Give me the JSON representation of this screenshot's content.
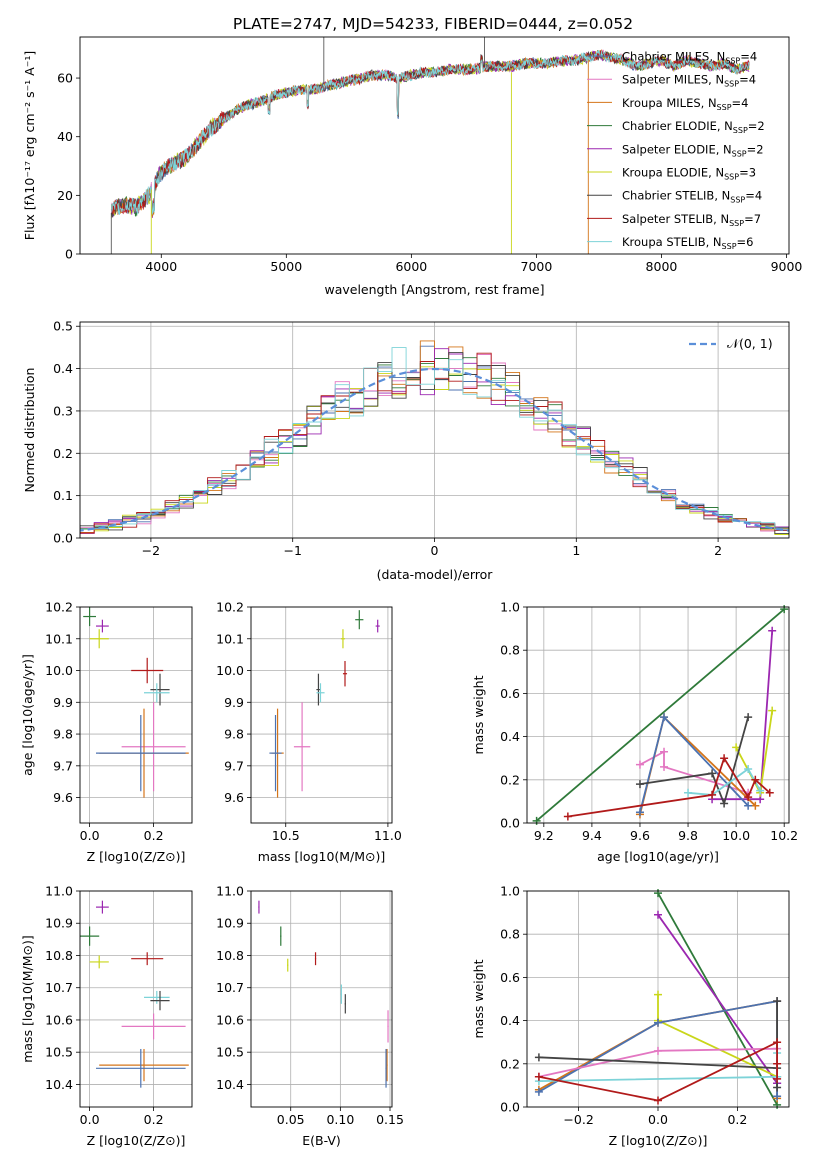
{
  "chart_data": [
    {
      "type": "line",
      "title": "PLATE=2747, MJD=54233, FIBERID=0444, z=0.052",
      "xlabel": "wavelength [Angstrom, rest frame]",
      "ylabel": "Flux [fλ10⁻¹⁷ erg cm⁻² s⁻¹ A⁻¹]",
      "xlim": [
        3350,
        9020
      ],
      "ylim": [
        0,
        74
      ],
      "xticks": [
        4000,
        5000,
        6000,
        7000,
        8000,
        9000
      ],
      "yticks": [
        0,
        20,
        40,
        60
      ],
      "legend_position": "top-right",
      "series": [
        {
          "name": "Chabrier MILES, N_SSP=4",
          "color": "#4c72b0"
        },
        {
          "name": "Salpeter MILES, N_SSP=4",
          "color": "#e377c2"
        },
        {
          "name": "Kroupa MILES, N_SSP=4",
          "color": "#d4751a"
        },
        {
          "name": "Chabrier ELODIE, N_SSP=2",
          "color": "#2f7a3a"
        },
        {
          "name": "Salpeter ELODIE, N_SSP=2",
          "color": "#9b27b0"
        },
        {
          "name": "Kroupa ELODIE, N_SSP=3",
          "color": "#c9d61a"
        },
        {
          "name": "Chabrier STELIB, N_SSP=4",
          "color": "#444444"
        },
        {
          "name": "Salpeter STELIB, N_SSP=7",
          "color": "#b11a1a"
        },
        {
          "name": "Kroupa STELIB, N_SSP=6",
          "color": "#7dd3d8"
        }
      ],
      "spectrum_envelope": {
        "wavelength": [
          3600,
          3700,
          3800,
          3900,
          3950,
          4000,
          4100,
          4200,
          4300,
          4400,
          4500,
          4600,
          4700,
          4800,
          4900,
          5000,
          5100,
          5200,
          5300,
          5400,
          5500,
          5600,
          5700,
          5800,
          5900,
          6000,
          6100,
          6200,
          6300,
          6400,
          6500,
          6600,
          6700,
          6800,
          6900,
          7000,
          7100,
          7200,
          7300,
          7400,
          7500,
          7600,
          7700,
          7800,
          7900,
          8000,
          8100,
          8200,
          8300,
          8400,
          8500,
          8600,
          8700
        ],
        "flux": [
          15,
          17,
          16,
          20,
          24,
          28,
          31,
          33,
          38,
          43,
          46,
          49,
          51,
          52,
          54,
          55,
          56,
          56,
          57,
          58,
          59,
          60,
          61,
          61,
          60,
          61,
          62,
          62,
          63,
          63,
          63,
          64,
          64,
          64,
          65,
          65,
          65,
          66,
          66,
          67,
          68,
          67,
          66,
          64,
          65,
          66,
          64,
          66,
          65,
          64,
          65,
          63,
          64
        ]
      }
    },
    {
      "type": "bar",
      "xlabel": "(data-model)/error",
      "ylabel": "Normed distribution",
      "xlim": [
        -2.5,
        2.5
      ],
      "ylim": [
        0,
        0.51
      ],
      "xticks": [
        -2,
        -1,
        0,
        1,
        2
      ],
      "yticks": [
        0.0,
        0.1,
        0.2,
        0.3,
        0.4,
        0.5
      ],
      "legend": "𝒩(0, 1)",
      "legend_position": "top-right",
      "bin_width": 0.1,
      "reference_curve": "normal(0,1)",
      "reference_color": "#5b8fd9"
    },
    {
      "type": "scatter",
      "xlabel": "Z [log10(Z/Z⊙)]",
      "ylabel": "age [log10(age/yr)]",
      "xlim": [
        -0.03,
        0.32
      ],
      "ylim": [
        9.52,
        10.2
      ],
      "xticks": [
        0.0,
        0.2
      ],
      "yticks": [
        9.6,
        9.7,
        9.8,
        9.9,
        10.0,
        10.1,
        10.2
      ],
      "points": [
        {
          "x": 0.0,
          "y": 10.17,
          "xerr": 0.02,
          "yerr": 0.03,
          "color": "#2f7a3a"
        },
        {
          "x": 0.04,
          "y": 10.14,
          "xerr": 0.02,
          "yerr": 0.02,
          "color": "#9b27b0"
        },
        {
          "x": 0.03,
          "y": 10.1,
          "xerr": 0.03,
          "yerr": 0.03,
          "color": "#c9d61a"
        },
        {
          "x": 0.18,
          "y": 10.0,
          "xerr": 0.05,
          "yerr": 0.04,
          "color": "#b11a1a"
        },
        {
          "x": 0.22,
          "y": 9.94,
          "xerr": 0.03,
          "yerr": 0.05,
          "color": "#444444"
        },
        {
          "x": 0.21,
          "y": 9.93,
          "xerr": 0.04,
          "yerr": 0.03,
          "color": "#7dd3d8"
        },
        {
          "x": 0.2,
          "y": 9.76,
          "xerr": 0.1,
          "yerr": 0.14,
          "color": "#e377c2"
        },
        {
          "x": 0.17,
          "y": 9.74,
          "xerr": 0.14,
          "yerr": 0.14,
          "color": "#d4751a"
        },
        {
          "x": 0.16,
          "y": 9.74,
          "xerr": 0.14,
          "yerr": 0.12,
          "color": "#4c72b0"
        }
      ]
    },
    {
      "type": "scatter",
      "xlabel": "mass [log10(M/M⊙)]",
      "ylabel": "",
      "xlim": [
        10.33,
        11.02
      ],
      "ylim": [
        9.52,
        10.2
      ],
      "xticks": [
        10.5,
        11.0
      ],
      "yticks": [
        9.6,
        9.7,
        9.8,
        9.9,
        10.0,
        10.1,
        10.2
      ],
      "points": [
        {
          "x": 10.86,
          "y": 10.16,
          "xerr": 0.02,
          "yerr": 0.03,
          "color": "#2f7a3a"
        },
        {
          "x": 10.95,
          "y": 10.14,
          "xerr": 0.01,
          "yerr": 0.02,
          "color": "#9b27b0"
        },
        {
          "x": 10.78,
          "y": 10.1,
          "xerr": 0.01,
          "yerr": 0.03,
          "color": "#c9d61a"
        },
        {
          "x": 10.79,
          "y": 9.99,
          "xerr": 0.01,
          "yerr": 0.04,
          "color": "#b11a1a"
        },
        {
          "x": 10.66,
          "y": 9.94,
          "xerr": 0.01,
          "yerr": 0.05,
          "color": "#444444"
        },
        {
          "x": 10.67,
          "y": 9.93,
          "xerr": 0.02,
          "yerr": 0.03,
          "color": "#7dd3d8"
        },
        {
          "x": 10.58,
          "y": 9.76,
          "xerr": 0.04,
          "yerr": 0.14,
          "color": "#e377c2"
        },
        {
          "x": 10.46,
          "y": 9.74,
          "xerr": 0.03,
          "yerr": 0.14,
          "color": "#d4751a"
        },
        {
          "x": 10.45,
          "y": 9.74,
          "xerr": 0.03,
          "yerr": 0.12,
          "color": "#4c72b0"
        }
      ]
    },
    {
      "type": "line",
      "xlabel": "age [log10(age/yr)]",
      "ylabel": "mass weight",
      "xlim": [
        9.13,
        10.22
      ],
      "ylim": [
        0.0,
        1.0
      ],
      "xticks": [
        9.2,
        9.4,
        9.6,
        9.8,
        10.0,
        10.2
      ],
      "yticks": [
        0.0,
        0.2,
        0.4,
        0.6,
        0.8,
        1.0
      ],
      "series": [
        {
          "color": "#2f7a3a",
          "x": [
            9.17,
            10.2
          ],
          "y": [
            0.01,
            0.99
          ]
        },
        {
          "color": "#9b27b0",
          "x": [
            9.9,
            10.1,
            10.15
          ],
          "y": [
            0.11,
            0.11,
            0.89
          ]
        },
        {
          "color": "#c9d61a",
          "x": [
            10.0,
            10.1,
            10.15
          ],
          "y": [
            0.35,
            0.14,
            0.52
          ]
        },
        {
          "color": "#e377c2",
          "x": [
            9.6,
            9.7,
            9.7,
            10.05
          ],
          "y": [
            0.27,
            0.33,
            0.26,
            0.14
          ]
        },
        {
          "color": "#d4751a",
          "x": [
            9.6,
            9.7,
            10.08
          ],
          "y": [
            0.04,
            0.49,
            0.08
          ]
        },
        {
          "color": "#4c72b0",
          "x": [
            9.6,
            9.7,
            10.05
          ],
          "y": [
            0.05,
            0.49,
            0.08
          ]
        },
        {
          "color": "#444444",
          "x": [
            9.6,
            9.9,
            9.95,
            10.05
          ],
          "y": [
            0.18,
            0.23,
            0.09,
            0.49
          ]
        },
        {
          "color": "#7dd3d8",
          "x": [
            9.8,
            9.9,
            10.05,
            10.1
          ],
          "y": [
            0.14,
            0.13,
            0.25,
            0.15
          ]
        },
        {
          "color": "#b11a1a",
          "x": [
            9.3,
            9.9,
            9.95,
            10.05,
            10.08,
            10.14
          ],
          "y": [
            0.03,
            0.13,
            0.3,
            0.12,
            0.2,
            0.14
          ]
        }
      ]
    },
    {
      "type": "scatter",
      "xlabel": "Z [log10(Z/Z⊙)]",
      "ylabel": "mass [log10(M/M⊙)]",
      "xlim": [
        -0.03,
        0.32
      ],
      "ylim": [
        10.33,
        11.0
      ],
      "xticks": [
        0.0,
        0.2
      ],
      "yticks": [
        10.4,
        10.5,
        10.6,
        10.7,
        10.8,
        10.9,
        11.0
      ],
      "points": [
        {
          "x": 0.04,
          "y": 10.95,
          "xerr": 0.02,
          "yerr": 0.02,
          "color": "#9b27b0"
        },
        {
          "x": 0.0,
          "y": 10.86,
          "xerr": 0.03,
          "yerr": 0.03,
          "color": "#2f7a3a"
        },
        {
          "x": 0.18,
          "y": 10.79,
          "xerr": 0.05,
          "yerr": 0.02,
          "color": "#b11a1a"
        },
        {
          "x": 0.03,
          "y": 10.78,
          "xerr": 0.03,
          "yerr": 0.02,
          "color": "#c9d61a"
        },
        {
          "x": 0.21,
          "y": 10.67,
          "xerr": 0.04,
          "yerr": 0.02,
          "color": "#7dd3d8"
        },
        {
          "x": 0.22,
          "y": 10.66,
          "xerr": 0.03,
          "yerr": 0.03,
          "color": "#444444"
        },
        {
          "x": 0.2,
          "y": 10.58,
          "xerr": 0.1,
          "yerr": 0.04,
          "color": "#e377c2"
        },
        {
          "x": 0.17,
          "y": 10.46,
          "xerr": 0.14,
          "yerr": 0.05,
          "color": "#d4751a"
        },
        {
          "x": 0.16,
          "y": 10.45,
          "xerr": 0.14,
          "yerr": 0.06,
          "color": "#4c72b0"
        }
      ]
    },
    {
      "type": "scatter",
      "xlabel": "E(B-V)",
      "ylabel": "",
      "xlim": [
        0.01,
        0.152
      ],
      "ylim": [
        10.33,
        11.0
      ],
      "xticks": [
        0.05,
        0.1,
        0.15
      ],
      "yticks": [
        10.4,
        10.5,
        10.6,
        10.7,
        10.8,
        10.9,
        11.0
      ],
      "points": [
        {
          "x": 0.018,
          "y": 10.95,
          "xerr": 0.0,
          "yerr": 0.02,
          "color": "#9b27b0"
        },
        {
          "x": 0.04,
          "y": 10.86,
          "xerr": 0.0,
          "yerr": 0.03,
          "color": "#2f7a3a"
        },
        {
          "x": 0.075,
          "y": 10.79,
          "xerr": 0.0,
          "yerr": 0.02,
          "color": "#b11a1a"
        },
        {
          "x": 0.047,
          "y": 10.77,
          "xerr": 0.0,
          "yerr": 0.02,
          "color": "#c9d61a"
        },
        {
          "x": 0.101,
          "y": 10.68,
          "xerr": 0.0,
          "yerr": 0.03,
          "color": "#7dd3d8"
        },
        {
          "x": 0.105,
          "y": 10.65,
          "xerr": 0.0,
          "yerr": 0.03,
          "color": "#444444"
        },
        {
          "x": 0.148,
          "y": 10.58,
          "xerr": 0.0,
          "yerr": 0.05,
          "color": "#e377c2"
        },
        {
          "x": 0.147,
          "y": 10.46,
          "xerr": 0.0,
          "yerr": 0.05,
          "color": "#d4751a"
        },
        {
          "x": 0.146,
          "y": 10.45,
          "xerr": 0.0,
          "yerr": 0.06,
          "color": "#4c72b0"
        }
      ]
    },
    {
      "type": "line",
      "xlabel": "Z [log10(Z/Z⊙)]",
      "ylabel": "mass weight",
      "xlim": [
        -0.33,
        0.33
      ],
      "ylim": [
        0.0,
        1.0
      ],
      "xticks": [
        -0.2,
        0.0,
        0.2
      ],
      "yticks": [
        0.0,
        0.2,
        0.4,
        0.6,
        0.8,
        1.0
      ],
      "series": [
        {
          "color": "#2f7a3a",
          "x": [
            0.0,
            0.3
          ],
          "y": [
            0.99,
            0.01
          ]
        },
        {
          "color": "#9b27b0",
          "x": [
            0.0,
            0.3,
            0.3
          ],
          "y": [
            0.89,
            0.11,
            0.11
          ]
        },
        {
          "color": "#c9d61a",
          "x": [
            0.0,
            0.0,
            0.3
          ],
          "y": [
            0.52,
            0.4,
            0.14
          ]
        },
        {
          "color": "#d4751a",
          "x": [
            -0.3,
            0.0,
            0.3,
            0.3
          ],
          "y": [
            0.08,
            0.39,
            0.49,
            0.04
          ]
        },
        {
          "color": "#4c72b0",
          "x": [
            -0.3,
            0.0,
            0.3,
            0.3
          ],
          "y": [
            0.07,
            0.39,
            0.49,
            0.05
          ]
        },
        {
          "color": "#e377c2",
          "x": [
            -0.3,
            0.0,
            0.3,
            0.3
          ],
          "y": [
            0.14,
            0.26,
            0.27,
            0.14
          ]
        },
        {
          "color": "#444444",
          "x": [
            -0.3,
            0.3,
            0.3,
            0.3
          ],
          "y": [
            0.23,
            0.18,
            0.49,
            0.09
          ]
        },
        {
          "color": "#7dd3d8",
          "x": [
            -0.3,
            0.3,
            0.3
          ],
          "y": [
            0.12,
            0.14,
            0.25
          ]
        },
        {
          "color": "#b11a1a",
          "x": [
            -0.3,
            0.0,
            0.3,
            0.3,
            0.3
          ],
          "y": [
            0.14,
            0.03,
            0.3,
            0.13,
            0.2
          ]
        }
      ]
    }
  ]
}
